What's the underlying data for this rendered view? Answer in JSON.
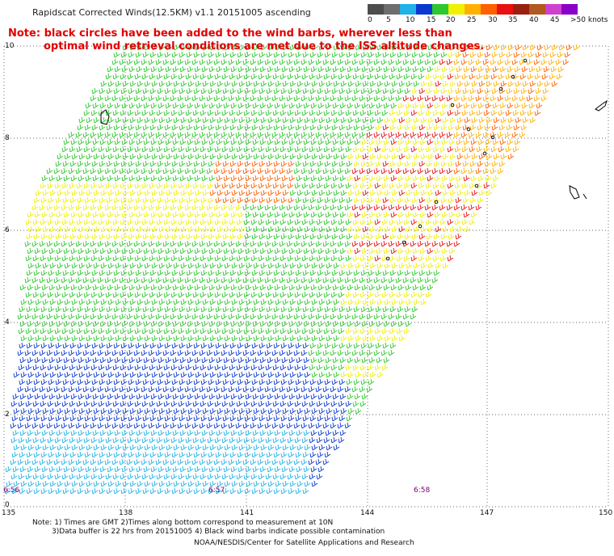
{
  "title": "Rapidscat Corrected Winds(12.5KM) v1.1 20151005 ascending",
  "notes": {
    "line1": "Note: black circles have been added to the wind barbs, wherever less than",
    "line2": "optimal wind retrieval conditions are met due to the ISS altitude changes."
  },
  "legend": {
    "colors": [
      "#4d4d4d",
      "#6e6e6e",
      "#20b2e8",
      "#0a38d0",
      "#2dc82d",
      "#f0f000",
      "#ffb000",
      "#ff6000",
      "#e81010",
      "#9a2010",
      "#b05a20",
      "#d040d0",
      "#8a00c8"
    ],
    "labels": [
      "0",
      "5",
      "10",
      "15",
      "20",
      "25",
      "30",
      "35",
      "40",
      "45",
      ">50 knots"
    ]
  },
  "lat_labels": [
    "10",
    "8",
    "6",
    "4",
    "2",
    "0"
  ],
  "lon_labels": [
    "135",
    "138",
    "141",
    "144",
    "147",
    "150"
  ],
  "time_labels": [
    "6:56",
    "6:57",
    "6:58"
  ],
  "footer": {
    "line1": "Note: 1) Times are GMT 2)Times along bottom correspond to measurement at 10N",
    "line2": "3)Data buffer is 22 hrs from 20151005 4) Black wind barbs indicate possible contamination",
    "line3": "NOAA/NESDIS/Center for Satellite Applications and Research"
  }
}
